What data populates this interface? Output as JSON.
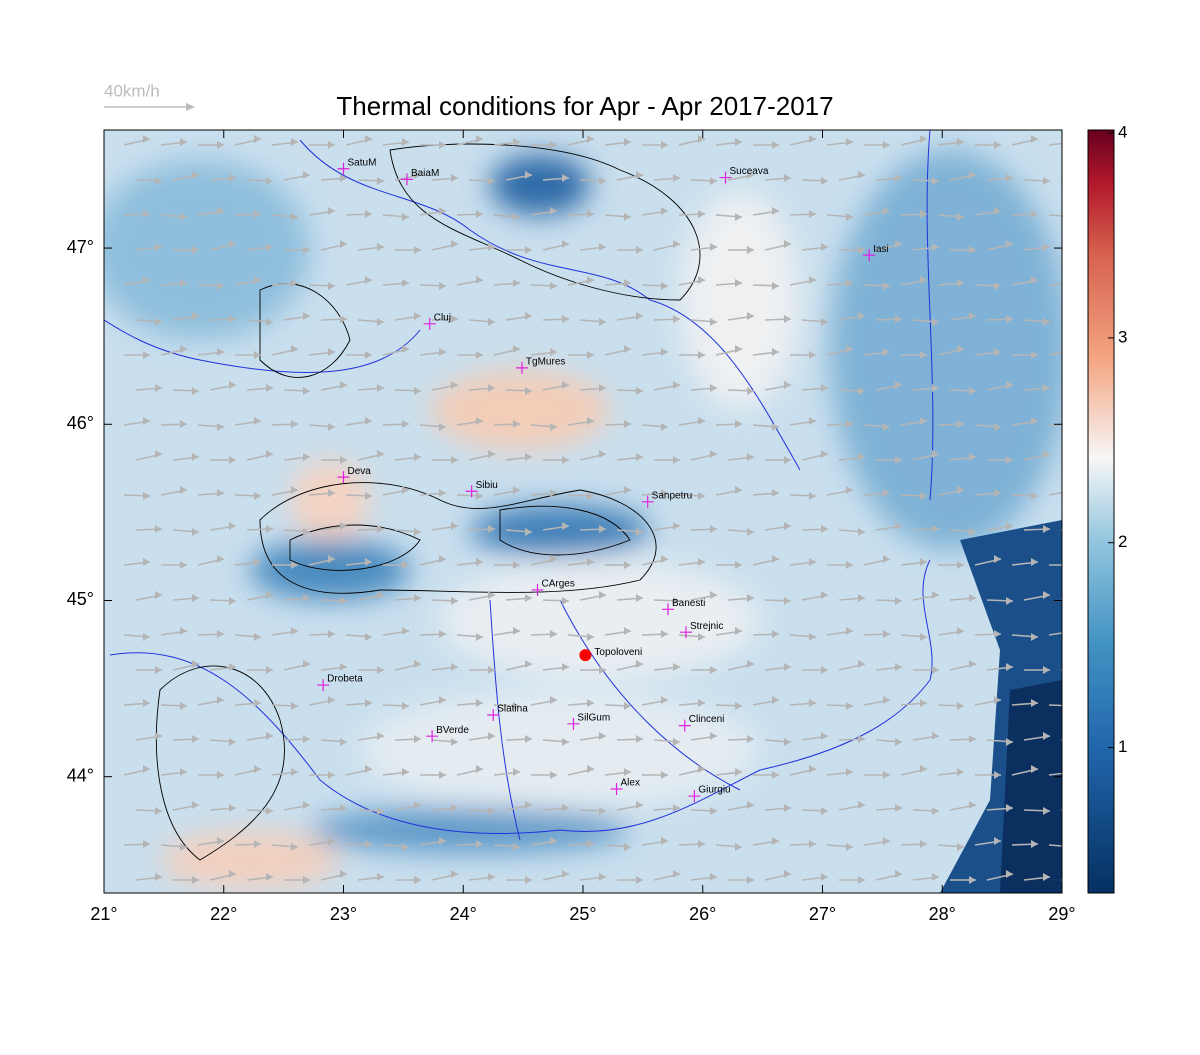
{
  "header": {
    "title": "Thermal conditions for Apr - Apr  2017-2017",
    "wind_legend": "40km/h"
  },
  "map": {
    "xlim": [
      21,
      29
    ],
    "ylim": [
      43.34,
      47.67
    ],
    "xticks": [
      {
        "value": 21,
        "label": "21°"
      },
      {
        "value": 22,
        "label": "22°"
      },
      {
        "value": 23,
        "label": "23°"
      },
      {
        "value": 24,
        "label": "24°"
      },
      {
        "value": 25,
        "label": "25°"
      },
      {
        "value": 26,
        "label": "26°"
      },
      {
        "value": 27,
        "label": "27°"
      },
      {
        "value": 28,
        "label": "28°"
      },
      {
        "value": 29,
        "label": "29°"
      }
    ],
    "yticks": [
      {
        "value": 44,
        "label": "44°"
      },
      {
        "value": 45,
        "label": "45°"
      },
      {
        "value": 46,
        "label": "46°"
      },
      {
        "value": 47,
        "label": "47°"
      }
    ],
    "cities": [
      {
        "name": "SatuM",
        "lon": 23.0,
        "lat": 47.45
      },
      {
        "name": "BaiaM",
        "lon": 23.53,
        "lat": 47.39
      },
      {
        "name": "Suceava",
        "lon": 26.19,
        "lat": 47.4
      },
      {
        "name": "Iasi",
        "lon": 27.39,
        "lat": 46.96
      },
      {
        "name": "Cluj",
        "lon": 23.72,
        "lat": 46.57
      },
      {
        "name": "TgMures",
        "lon": 24.49,
        "lat": 46.32
      },
      {
        "name": "Deva",
        "lon": 23.0,
        "lat": 45.7
      },
      {
        "name": "Sibiu",
        "lon": 24.07,
        "lat": 45.62
      },
      {
        "name": "Sanpetru",
        "lon": 25.54,
        "lat": 45.56
      },
      {
        "name": "CArges",
        "lon": 24.62,
        "lat": 45.06
      },
      {
        "name": "Banesti",
        "lon": 25.71,
        "lat": 44.95
      },
      {
        "name": "Strejnic",
        "lon": 25.86,
        "lat": 44.82
      },
      {
        "name": "Drobeta",
        "lon": 22.83,
        "lat": 44.52
      },
      {
        "name": "Slatina",
        "lon": 24.25,
        "lat": 44.35
      },
      {
        "name": "SilGum",
        "lon": 24.92,
        "lat": 44.3
      },
      {
        "name": "Clinceni",
        "lon": 25.85,
        "lat": 44.29
      },
      {
        "name": "BVerde",
        "lon": 23.74,
        "lat": 44.23
      },
      {
        "name": "Alex",
        "lon": 25.28,
        "lat": 43.93
      },
      {
        "name": "Giurgiu",
        "lon": 25.93,
        "lat": 43.89
      }
    ],
    "site": {
      "name": "Topoloveni",
      "lon": 25.02,
      "lat": 44.69
    }
  },
  "colorbar": {
    "clim": [
      0.29,
      4.015
    ],
    "ticks": [
      1,
      2,
      3,
      4
    ]
  }
}
